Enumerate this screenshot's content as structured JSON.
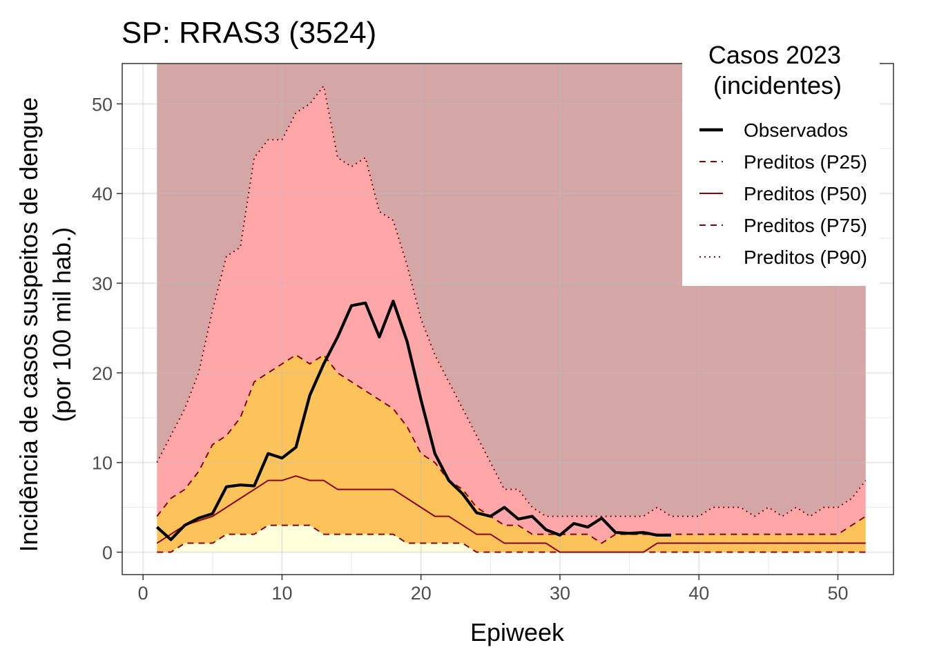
{
  "chart_data": {
    "type": "line",
    "title": "SP: RRAS3 (3524)",
    "xlabel": "Epiweek",
    "ylabel_line1": "Incidência de casos suspeitos de dengue",
    "ylabel_line2": "(por 100 mil hab.)",
    "xlim": [
      -1.5,
      54
    ],
    "ylim": [
      -2.5,
      54.5
    ],
    "x_ticks": [
      0,
      10,
      20,
      30,
      40,
      50
    ],
    "x_tick_labels": [
      "0",
      "10",
      "20",
      "30",
      "40",
      "50"
    ],
    "y_ticks": [
      0,
      10,
      20,
      30,
      40,
      50
    ],
    "y_tick_labels": [
      "0",
      "10",
      "20",
      "30",
      "40",
      "50"
    ],
    "grid": true,
    "legend": {
      "title_line1": "Casos 2023",
      "title_line2": "(incidentes)",
      "placement": "top-right",
      "entries": [
        {
          "label": "Observados",
          "style": "solid-thick",
          "color": "#000000"
        },
        {
          "label": "Preditos (P25)",
          "style": "dashed",
          "color": "#8b0000"
        },
        {
          "label": "Preditos (P50)",
          "style": "solid",
          "color": "#8b0000"
        },
        {
          "label": "Preditos (P75)",
          "style": "dashed",
          "color": "#8b0000"
        },
        {
          "label": "Preditos (P90)",
          "style": "dotted",
          "color": "#8b0000"
        }
      ]
    },
    "band_colors": {
      "above_p90": "#d5a6a6",
      "p75_p90": "#ffa6a8",
      "p25_p75": "#fcc35a",
      "below_p25": "#ffffdc"
    },
    "band_top": 54.5,
    "weeks": [
      1,
      2,
      3,
      4,
      5,
      6,
      7,
      8,
      9,
      10,
      11,
      12,
      13,
      14,
      15,
      16,
      17,
      18,
      19,
      20,
      21,
      22,
      23,
      24,
      25,
      26,
      27,
      28,
      29,
      30,
      31,
      32,
      33,
      34,
      35,
      36,
      37,
      38,
      39,
      40,
      41,
      42,
      43,
      44,
      45,
      46,
      47,
      48,
      49,
      50,
      51,
      52
    ],
    "p25": [
      0,
      0,
      1,
      1,
      1,
      2,
      2,
      2,
      3,
      3,
      3,
      3,
      2,
      2,
      2,
      2,
      2,
      2,
      1,
      1,
      1,
      1,
      1,
      0,
      0,
      0,
      0,
      0,
      0,
      0,
      0,
      0,
      0,
      0,
      0,
      0,
      0,
      0,
      0,
      0,
      0,
      0,
      0,
      0,
      0,
      0,
      0,
      0,
      0,
      0,
      0,
      0
    ],
    "p50": [
      1,
      2,
      3,
      3.5,
      4,
      5,
      6,
      7,
      8,
      8,
      8.5,
      8,
      8,
      7,
      7,
      7,
      7,
      7,
      6,
      5,
      4,
      4,
      3,
      2,
      2,
      1,
      1,
      1,
      1,
      0,
      0,
      0,
      0,
      0,
      0,
      0,
      1,
      1,
      1,
      1,
      1,
      1,
      1,
      1,
      1,
      1,
      1,
      1,
      1,
      1,
      1,
      1
    ],
    "p75": [
      4,
      6,
      7,
      9,
      12,
      13,
      15,
      19,
      20,
      21,
      22,
      21,
      22,
      20,
      19,
      18,
      17,
      16,
      14,
      11,
      10,
      8,
      7,
      5,
      4,
      3,
      3,
      2,
      2,
      2,
      2,
      2,
      1,
      2,
      2,
      2,
      2,
      2,
      2,
      2,
      2,
      2,
      2,
      2,
      2,
      2,
      2,
      2,
      2,
      2,
      3,
      4
    ],
    "p90": [
      10,
      13,
      16,
      20,
      27,
      33,
      34,
      44,
      46,
      46,
      49,
      50,
      52,
      44,
      43,
      44,
      38,
      37,
      32,
      26,
      22,
      19,
      16,
      13,
      10,
      7,
      7,
      5,
      4,
      4,
      4,
      4,
      4,
      4,
      4,
      4,
      5,
      4,
      4,
      4,
      5,
      5,
      5,
      4,
      5,
      4,
      5,
      4,
      5,
      5,
      6,
      8
    ],
    "observed_weeks": [
      1,
      2,
      3,
      4,
      5,
      6,
      7,
      8,
      9,
      10,
      11,
      12,
      13,
      14,
      15,
      16,
      17,
      18,
      19,
      20,
      21,
      22,
      23,
      24,
      25,
      26,
      27,
      28,
      29,
      30,
      31,
      32,
      33,
      34,
      35,
      36,
      37,
      38
    ],
    "observed": [
      2.8,
      1.4,
      3.0,
      3.8,
      4.3,
      7.3,
      7.5,
      7.4,
      11.0,
      10.5,
      11.7,
      17.5,
      21.0,
      24.0,
      27.5,
      27.8,
      24.0,
      28.0,
      23.5,
      17.0,
      11.0,
      8.0,
      6.5,
      4.4,
      4.0,
      5.0,
      3.7,
      4.0,
      2.5,
      1.9,
      3.2,
      2.8,
      3.8,
      2.2,
      2.1,
      2.2,
      1.9,
      1.9
    ]
  }
}
